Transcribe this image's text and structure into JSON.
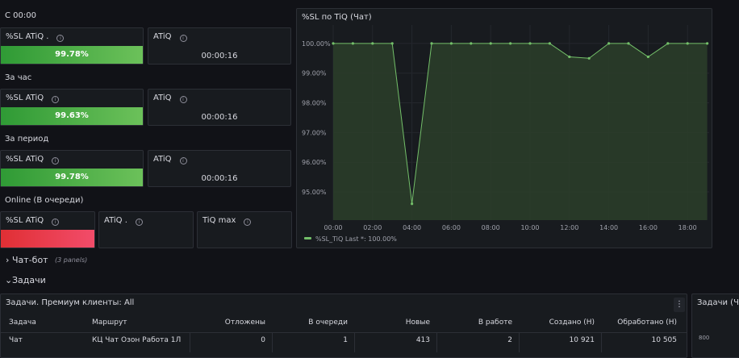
{
  "sections": {
    "s1": "С 00:00",
    "s2": "За час",
    "s3": "За период",
    "s4": "Online (В очереди)"
  },
  "stats": [
    {
      "sl_title": "%SL ATiQ .",
      "sl_value": "99.78%",
      "atiq_title": "ATiQ",
      "atiq_value": "00:00:16"
    },
    {
      "sl_title": "%SL ATiQ",
      "sl_value": "99.63%",
      "atiq_title": "ATiQ",
      "atiq_value": "00:00:16"
    },
    {
      "sl_title": "%SL ATiQ",
      "sl_value": "99.78%",
      "atiq_title": "ATiQ",
      "atiq_value": "00:00:16"
    }
  ],
  "online": {
    "sl_title": "%SL ATiQ",
    "atiq_title": "ATiQ .",
    "tiqmax_title": "TiQ max"
  },
  "rows": {
    "chatbot": {
      "title": "Чат-бот",
      "count": "(3 panels)"
    },
    "tasks": {
      "title": "Задачи"
    }
  },
  "table": {
    "title": "Задачи. Премиум клиенты: All",
    "headers": [
      "Задача",
      "Маршрут",
      "Отложены",
      "В очереди",
      "Новые",
      "В работе",
      "Создано (Н)",
      "Обработано (Н)"
    ],
    "rows": [
      [
        "Чат",
        "КЦ Чат Озон Работа 1Л",
        "0",
        "1",
        "413",
        "2",
        "10 921",
        "10 505"
      ]
    ]
  },
  "right_panel": {
    "title": "Задачи (Чат",
    "tick": "800"
  },
  "colors": {
    "line": "#73bf69",
    "fill": "#2c3e2a",
    "green_a": "#2f9a35",
    "green_b": "#6cc15a",
    "red_a": "#e02f34",
    "red_b": "#f24c6a"
  },
  "chart_data": {
    "type": "line",
    "title": "%SL по TiQ (Чат)",
    "x": [
      "00:00",
      "01:00",
      "02:00",
      "03:00",
      "04:00",
      "05:00",
      "06:00",
      "07:00",
      "08:00",
      "09:00",
      "10:00",
      "11:00",
      "12:00",
      "13:00",
      "14:00",
      "15:00",
      "16:00",
      "17:00",
      "18:00",
      "19:00"
    ],
    "xticks": [
      "00:00",
      "02:00",
      "04:00",
      "06:00",
      "08:00",
      "10:00",
      "12:00",
      "14:00",
      "16:00",
      "18:00"
    ],
    "series": [
      {
        "name": "%SL_TiQ",
        "values": [
          100,
          100,
          100,
          100,
          94.6,
          100,
          100,
          100,
          100,
          100,
          100,
          100,
          99.55,
          99.5,
          100,
          100,
          99.55,
          100,
          100,
          100
        ]
      }
    ],
    "ylim": [
      94.05,
      100.35
    ],
    "yticks": [
      100,
      99,
      98,
      97,
      96,
      95
    ],
    "ytick_labels": [
      "100.00%",
      "99.00%",
      "98.00%",
      "97.00%",
      "96.00%",
      "95.00%"
    ],
    "legend_text": "%SL_TiQ  Last *: 100.00%",
    "legend": "bottom-left",
    "grid": true
  }
}
